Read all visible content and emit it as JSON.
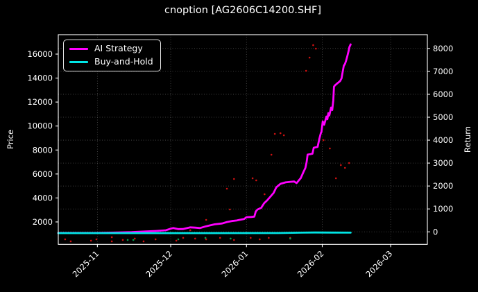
{
  "title": "cnoption [AG2606C14200.SHF]",
  "colors": {
    "background": "#000000",
    "text": "#ffffff",
    "spine": "#ffffff",
    "grid": "#4f4f4f",
    "ai_strategy": "#ff00ff",
    "buy_and_hold": "#00e5e5",
    "scatter_red": "#cc1111",
    "scatter_green": "#00a050"
  },
  "legend": {
    "items": [
      {
        "label": "AI Strategy",
        "color_key": "ai_strategy"
      },
      {
        "label": "Buy-and-Hold",
        "color_key": "buy_and_hold"
      }
    ],
    "position": "upper left"
  },
  "axes": {
    "left": {
      "label": "Price"
    },
    "right": {
      "label": "Return"
    }
  },
  "chart_data": {
    "type": "line",
    "title": "cnoption [AG2606C14200.SHF]",
    "xlabel": "",
    "x_axis": {
      "tick_labels": [
        "2025-11",
        "2025-12",
        "2026-01",
        "2026-02",
        "2026-03"
      ],
      "tick_days": [
        16,
        46,
        77,
        108,
        136
      ],
      "domain_days": [
        0,
        151
      ],
      "day0_date": "2025-10-16",
      "tick_rotation_deg": 45
    },
    "left_axis": {
      "label": "Price",
      "ticks": [
        2000,
        4000,
        6000,
        8000,
        10000,
        12000,
        14000,
        16000
      ],
      "range": [
        130,
        17620
      ]
    },
    "right_axis": {
      "label": "Return",
      "ticks": [
        0,
        1000,
        2000,
        3000,
        4000,
        5000,
        6000,
        7000,
        8000
      ],
      "range": [
        -545,
        8600
      ]
    },
    "grid": true,
    "grid_style": "dotted",
    "series": [
      {
        "name": "AI Strategy",
        "axis": "right",
        "color": "#ff00ff",
        "line_width": 2.8,
        "points": [
          [
            0,
            -50
          ],
          [
            8,
            -50
          ],
          [
            15,
            -48
          ],
          [
            22,
            -35
          ],
          [
            30,
            -12
          ],
          [
            36,
            18
          ],
          [
            40,
            40
          ],
          [
            44,
            70
          ],
          [
            46,
            140
          ],
          [
            47,
            165
          ],
          [
            49,
            120
          ],
          [
            51,
            125
          ],
          [
            54,
            195
          ],
          [
            56,
            185
          ],
          [
            58,
            165
          ],
          [
            60,
            230
          ],
          [
            62,
            280
          ],
          [
            64,
            330
          ],
          [
            67,
            365
          ],
          [
            69,
            430
          ],
          [
            71,
            470
          ],
          [
            73,
            495
          ],
          [
            74,
            520
          ],
          [
            76,
            560
          ],
          [
            77,
            640
          ],
          [
            79,
            650
          ],
          [
            80.2,
            665
          ],
          [
            80.8,
            890
          ],
          [
            81.5,
            975
          ],
          [
            83,
            1045
          ],
          [
            84.2,
            1250
          ],
          [
            85.5,
            1380
          ],
          [
            86.9,
            1550
          ],
          [
            88.1,
            1700
          ],
          [
            89.2,
            1945
          ],
          [
            90.9,
            2095
          ],
          [
            93,
            2160
          ],
          [
            95,
            2185
          ],
          [
            96.5,
            2195
          ],
          [
            97.5,
            2125
          ],
          [
            98.5,
            2255
          ],
          [
            99.2,
            2345
          ],
          [
            100.3,
            2610
          ],
          [
            101.1,
            2790
          ],
          [
            101.6,
            3050
          ],
          [
            102,
            3370
          ],
          [
            103.2,
            3390
          ],
          [
            104,
            3410
          ],
          [
            104.5,
            3670
          ],
          [
            105.5,
            3690
          ],
          [
            106.1,
            3705
          ],
          [
            106.8,
            4060
          ],
          [
            107.4,
            4300
          ],
          [
            107.7,
            4365
          ],
          [
            108.2,
            4820
          ],
          [
            108.8,
            4670
          ],
          [
            109.3,
            4870
          ],
          [
            109.7,
            5030
          ],
          [
            110.1,
            4915
          ],
          [
            110.5,
            5180
          ],
          [
            110.9,
            5075
          ],
          [
            111.6,
            5425
          ],
          [
            112.1,
            5315
          ],
          [
            112.5,
            5725
          ],
          [
            112.8,
            6330
          ],
          [
            113.2,
            6390
          ],
          [
            114.2,
            6480
          ],
          [
            115.3,
            6575
          ],
          [
            115.9,
            6695
          ],
          [
            116.3,
            6935
          ],
          [
            116.8,
            7240
          ],
          [
            117.3,
            7330
          ],
          [
            117.7,
            7450
          ],
          [
            118.2,
            7635
          ],
          [
            118.8,
            7905
          ],
          [
            119.1,
            8055
          ],
          [
            119.6,
            8175
          ]
        ]
      },
      {
        "name": "Buy-and-Hold",
        "axis": "right",
        "color": "#00e5e5",
        "line_width": 2.8,
        "points": [
          [
            0,
            -55
          ],
          [
            60,
            -55
          ],
          [
            90,
            -52
          ],
          [
            100,
            -35
          ],
          [
            105,
            -28
          ],
          [
            112,
            -32
          ],
          [
            119.6,
            -35
          ]
        ]
      }
    ],
    "scatter": [
      {
        "name": "red-markers",
        "color": "#cc1111",
        "marker_size": 1.3,
        "points": [
          [
            2.8,
            -324
          ],
          [
            5.1,
            -414
          ],
          [
            13.4,
            -384
          ],
          [
            15.6,
            -324
          ],
          [
            21.9,
            -233
          ],
          [
            21.9,
            -414
          ],
          [
            26.4,
            -354
          ],
          [
            31.3,
            -293
          ],
          [
            34.9,
            -414
          ],
          [
            39.8,
            -324
          ],
          [
            48.3,
            -384
          ],
          [
            51.1,
            -263
          ],
          [
            54.0,
            70
          ],
          [
            56.0,
            -293
          ],
          [
            60.5,
            523
          ],
          [
            60.5,
            -324
          ],
          [
            66.2,
            -263
          ],
          [
            69.0,
            1884
          ],
          [
            70.2,
            977
          ],
          [
            71.9,
            2307
          ],
          [
            71.9,
            -354
          ],
          [
            78.7,
            -263
          ],
          [
            79.5,
            2338
          ],
          [
            81.0,
            2247
          ],
          [
            82.4,
            -324
          ],
          [
            84.4,
            1642
          ],
          [
            86.1,
            -263
          ],
          [
            87.2,
            3366
          ],
          [
            88.6,
            4273
          ],
          [
            90.9,
            4303
          ],
          [
            92.3,
            4213
          ],
          [
            94.9,
            -263
          ],
          [
            101.4,
            7025
          ],
          [
            102.8,
            7600
          ],
          [
            104.3,
            8144
          ],
          [
            105.4,
            7993
          ],
          [
            108.5,
            4001
          ],
          [
            111.1,
            3638
          ],
          [
            113.6,
            2338
          ],
          [
            115.6,
            2912
          ],
          [
            117.3,
            2791
          ],
          [
            119.0,
            3003
          ]
        ]
      },
      {
        "name": "green-markers",
        "color": "#00a050",
        "marker_size": 1.3,
        "points": [
          [
            28.4,
            -354
          ],
          [
            30.7,
            -354
          ],
          [
            49.1,
            -324
          ],
          [
            60.2,
            -263
          ],
          [
            70.5,
            -293
          ],
          [
            94.9,
            -293
          ]
        ]
      }
    ]
  }
}
